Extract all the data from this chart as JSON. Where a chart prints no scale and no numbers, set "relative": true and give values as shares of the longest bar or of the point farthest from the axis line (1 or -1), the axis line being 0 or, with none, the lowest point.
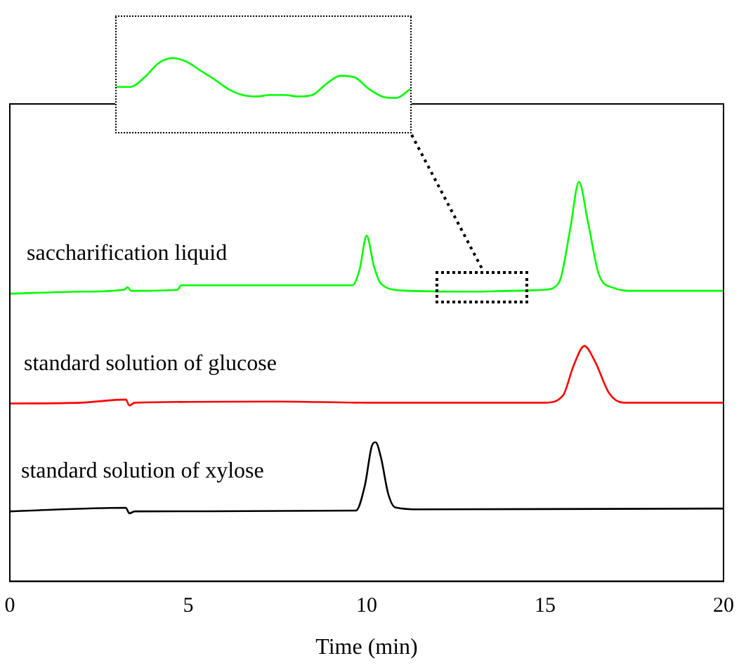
{
  "chart_data": [
    {
      "type": "line",
      "relative": true,
      "xlabel": "Time (min)",
      "xlim": [
        0,
        20
      ],
      "xticks": [
        0,
        5,
        10,
        15,
        20
      ],
      "tick_labels": "x",
      "grid": false,
      "legend": false,
      "marker": "none",
      "series": [
        {
          "name": "saccharification liquid",
          "color": "#00ff00",
          "x": [
            0,
            2,
            3.2,
            3.3,
            3.4,
            4.7,
            4.8,
            9.6,
            9.8,
            10.0,
            10.2,
            10.4,
            11,
            13,
            14,
            15,
            15.4,
            15.7,
            15.95,
            16.2,
            16.5,
            16.9,
            17.5,
            20
          ],
          "values": [
            0.72,
            0.725,
            0.73,
            0.736,
            0.727,
            0.73,
            0.741,
            0.741,
            0.78,
            0.865,
            0.79,
            0.745,
            0.728,
            0.725,
            0.727,
            0.73,
            0.75,
            0.88,
            1.0,
            0.9,
            0.77,
            0.735,
            0.727,
            0.727
          ]
        },
        {
          "name": "standard solution of glucose",
          "color": "#ff0000",
          "x": [
            0,
            2,
            3.25,
            3.35,
            3.5,
            7.5,
            10,
            15,
            15.5,
            15.8,
            16.1,
            16.4,
            16.8,
            17.2,
            20
          ],
          "values": [
            0.445,
            0.447,
            0.455,
            0.44,
            0.447,
            0.45,
            0.447,
            0.447,
            0.465,
            0.54,
            0.589,
            0.55,
            0.47,
            0.447,
            0.447
          ]
        },
        {
          "name": "standard solution of xylose",
          "color": "#000000",
          "x": [
            0,
            3.25,
            3.35,
            3.5,
            9.7,
            9.95,
            10.15,
            10.25,
            10.4,
            10.6,
            10.8,
            11.5,
            20
          ],
          "values": [
            0.175,
            0.184,
            0.17,
            0.175,
            0.177,
            0.24,
            0.34,
            0.348,
            0.31,
            0.22,
            0.185,
            0.18,
            0.182
          ]
        }
      ]
    },
    {
      "type": "line",
      "relative": true,
      "tick_labels": false,
      "grid": false,
      "legend": false,
      "marker": "none",
      "categories": [
        null,
        null,
        null,
        null,
        null,
        null,
        null,
        null,
        null,
        null,
        null,
        null,
        null,
        null,
        null,
        null,
        null,
        null,
        null,
        null,
        null,
        null
      ],
      "series": [
        {
          "color": "#00ff00",
          "values": [
            0.61,
            0.61,
            0.74,
            0.93,
            1.0,
            0.95,
            0.83,
            0.71,
            0.58,
            0.5,
            0.48,
            0.5,
            0.5,
            0.48,
            0.5,
            0.65,
            0.76,
            0.74,
            0.59,
            0.48,
            0.46,
            0.58
          ]
        }
      ]
    }
  ]
}
